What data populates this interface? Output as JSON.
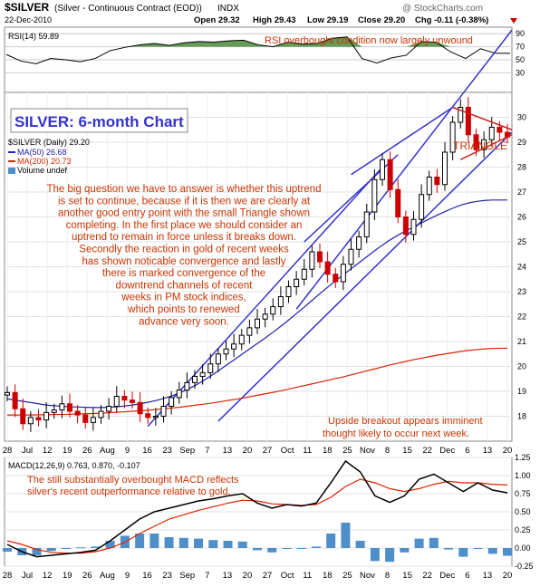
{
  "header": {
    "symbol": "$SILVER",
    "description": "(Silver - Continuous Contract (EOD))",
    "exchange": "INDX",
    "date": "22-Dec-2010",
    "open": "Open 29.32",
    "high": "High 29.43",
    "low": "Low 29.19",
    "close": "Close 29.20",
    "change": "Chg -0.11 (-0.38%)",
    "watermark": "@ StockCharts.com"
  },
  "colors": {
    "price_up": "#000000",
    "price_down": "#cc0000",
    "ma50": "#2222aa",
    "ma200": "#dd2200",
    "channel": "#3333cc",
    "triangle": "#cc2222",
    "rsi_fill": "#4a8a3a",
    "annotation": "#cc3300",
    "title": "#3333cc",
    "volume": "#4f8fc9",
    "macd_line": "#000000",
    "signal_line": "#dd2200"
  },
  "annotations": {
    "rsi_note": "RSI overbought condition now largely unwound",
    "chart_title": "SILVER: 6-month Chart",
    "main_text": [
      "The big question we have to answer is whether this uptrend",
      "is set to continue, because if it is then we are clearly at",
      "another good entry point with the small Triangle shown",
      "completing. In the first place we should consider an",
      "uptrend to remain in force unless it breaks down.",
      "Secondly the reaction in gold of recent weeks",
      "has shown noticable convergence and lastly",
      "there is marked convergence of the",
      "downtrend channels of recent",
      "weeks in PM stock indices,",
      "which points to renewed",
      "advance very soon."
    ],
    "triangle_label": "TRIANGLE",
    "breakout_note": [
      "Upside breakout appears imminent",
      "thought likely to occur next week."
    ],
    "macd_note": [
      "The still substantially overbought MACD reflects",
      "silver's recent outperformance relative to gold."
    ]
  },
  "chart_data": [
    {
      "type": "line",
      "panel": "rsi",
      "label": "RSI(14) 59.89",
      "ylim": [
        0,
        100
      ],
      "y_ticks": [
        30,
        50,
        70,
        90
      ],
      "x": [
        "Jul 28",
        "Jul 30",
        "Aug 4",
        "Aug 9",
        "Aug 13",
        "Aug 18",
        "Aug 23",
        "Aug 27",
        "Sep 1",
        "Sep 7",
        "Sep 10",
        "Sep 15",
        "Sep 20",
        "Sep 24",
        "Sep 29",
        "Oct 4",
        "Oct 8",
        "Oct 13",
        "Oct 18",
        "Oct 22",
        "Oct 27",
        "Nov 1",
        "Nov 5",
        "Nov 9",
        "Nov 12",
        "Nov 16",
        "Nov 19",
        "Nov 24",
        "Nov 30",
        "Dec 3",
        "Dec 6",
        "Dec 9",
        "Dec 14",
        "Dec 17",
        "Dec 22"
      ],
      "values": [
        58,
        48,
        44,
        52,
        50,
        47,
        52,
        64,
        69,
        73,
        75,
        72,
        76,
        78,
        77,
        79,
        80,
        73,
        70,
        77,
        74,
        75,
        83,
        85,
        52,
        45,
        53,
        57,
        78,
        77,
        62,
        52,
        67,
        60,
        59.89
      ]
    },
    {
      "type": "candlestick",
      "panel": "price",
      "title": "SILVER: 6-month Chart",
      "label": "$SILVER (Daily) 29.20",
      "ylim": [
        17,
        31
      ],
      "y_ticks": [
        18,
        19,
        20,
        21,
        22,
        23,
        24,
        25,
        26,
        27,
        28,
        29,
        30
      ],
      "x_ticks": [
        "28",
        "Jul",
        "12",
        "19",
        "26",
        "Aug",
        "9",
        "16",
        "23",
        "Sep",
        "7",
        "13",
        "20",
        "27",
        "Oct",
        "11",
        "18",
        "25",
        "Nov",
        "8",
        "15",
        "22",
        "Dec",
        "6",
        "13",
        "20"
      ],
      "close": [
        18.95,
        18.3,
        17.7,
        17.95,
        17.85,
        18.15,
        18.25,
        18.5,
        18.2,
        18.05,
        17.75,
        17.95,
        18.2,
        18.4,
        18.8,
        18.65,
        18.55,
        18.1,
        17.95,
        18.0,
        18.4,
        18.75,
        19.05,
        19.35,
        19.6,
        19.75,
        20.1,
        20.5,
        20.7,
        20.9,
        21.25,
        21.55,
        21.9,
        22.1,
        22.4,
        22.8,
        23.2,
        23.5,
        23.9,
        24.6,
        24.2,
        23.7,
        23.4,
        24.1,
        24.7,
        25.2,
        26.2,
        27.5,
        28.3,
        27.1,
        26.0,
        25.3,
        25.9,
        26.9,
        27.6,
        27.3,
        28.6,
        29.8,
        30.4,
        29.3,
        28.7,
        29.1,
        29.6,
        29.4,
        29.2
      ],
      "series": [
        {
          "name": "MA(50) 26.68",
          "values": [
            18.7,
            18.65,
            18.6,
            18.55,
            18.5,
            18.45,
            18.42,
            18.4,
            18.38,
            18.37,
            18.36,
            18.35,
            18.35,
            18.36,
            18.38,
            18.41,
            18.45,
            18.5,
            18.56,
            18.63,
            18.71,
            18.81,
            18.93,
            19.07,
            19.23,
            19.41,
            19.61,
            19.82,
            20.04,
            20.26,
            20.48,
            20.7,
            20.92,
            21.14,
            21.37,
            21.61,
            21.86,
            22.12,
            22.38,
            22.65,
            22.92,
            23.18,
            23.43,
            23.68,
            23.92,
            24.16,
            24.4,
            24.64,
            24.87,
            25.08,
            25.27,
            25.44,
            25.6,
            25.76,
            25.92,
            26.07,
            26.21,
            26.35,
            26.47,
            26.56,
            26.62,
            26.66,
            26.68,
            26.68,
            26.68
          ]
        },
        {
          "name": "MA(200) 20.73",
          "values": [
            18.05,
            18.05,
            18.05,
            18.05,
            18.06,
            18.06,
            18.07,
            18.07,
            18.08,
            18.09,
            18.1,
            18.11,
            18.12,
            18.14,
            18.16,
            18.18,
            18.2,
            18.22,
            18.24,
            18.27,
            18.3,
            18.33,
            18.36,
            18.4,
            18.44,
            18.48,
            18.52,
            18.57,
            18.62,
            18.67,
            18.72,
            18.78,
            18.84,
            18.9,
            18.96,
            19.02,
            19.09,
            19.16,
            19.23,
            19.3,
            19.37,
            19.44,
            19.51,
            19.58,
            19.66,
            19.74,
            19.82,
            19.9,
            19.98,
            20.06,
            20.13,
            20.2,
            20.27,
            20.33,
            20.39,
            20.45,
            20.5,
            20.55,
            20.6,
            20.64,
            20.67,
            20.7,
            20.72,
            20.73,
            20.73
          ]
        }
      ],
      "legend": [
        "$SILVER (Daily) 29.20",
        "MA(50) 26.68",
        "MA(200) 20.73",
        "Volume undef"
      ]
    },
    {
      "type": "line",
      "panel": "macd",
      "label": "MACD(12,26,9) 0.763, 0.870, -0.107",
      "ylim": [
        -0.25,
        1.25
      ],
      "y_ticks": [
        -0.25,
        0.0,
        0.25,
        0.5,
        0.75,
        1.0,
        1.25
      ],
      "x": [
        "Jul 28",
        "Jul 30",
        "Aug 4",
        "Aug 9",
        "Aug 13",
        "Aug 18",
        "Aug 23",
        "Aug 27",
        "Sep 1",
        "Sep 7",
        "Sep 10",
        "Sep 15",
        "Sep 20",
        "Sep 24",
        "Sep 29",
        "Oct 4",
        "Oct 8",
        "Oct 13",
        "Oct 18",
        "Oct 22",
        "Oct 27",
        "Nov 1",
        "Nov 5",
        "Nov 9",
        "Nov 12",
        "Nov 16",
        "Nov 19",
        "Nov 24",
        "Nov 30",
        "Dec 3",
        "Dec 6",
        "Dec 9",
        "Dec 14",
        "Dec 17",
        "Dec 22"
      ],
      "series": [
        {
          "name": "MACD",
          "values": [
            0.05,
            -0.05,
            -0.12,
            -0.1,
            -0.08,
            -0.06,
            -0.03,
            0.1,
            0.25,
            0.4,
            0.5,
            0.55,
            0.6,
            0.65,
            0.68,
            0.72,
            0.75,
            0.62,
            0.55,
            0.6,
            0.58,
            0.62,
            0.9,
            1.2,
            1.05,
            0.72,
            0.63,
            0.72,
            0.95,
            1.02,
            0.9,
            0.78,
            0.9,
            0.8,
            0.763
          ]
        },
        {
          "name": "Signal",
          "values": [
            0.1,
            0.05,
            -0.02,
            -0.06,
            -0.07,
            -0.07,
            -0.05,
            0.0,
            0.08,
            0.2,
            0.3,
            0.4,
            0.46,
            0.52,
            0.57,
            0.62,
            0.66,
            0.65,
            0.61,
            0.6,
            0.59,
            0.6,
            0.7,
            0.85,
            0.95,
            0.9,
            0.82,
            0.78,
            0.82,
            0.88,
            0.92,
            0.9,
            0.9,
            0.88,
            0.87
          ]
        },
        {
          "name": "Histogram",
          "values": [
            -0.05,
            -0.1,
            -0.1,
            -0.04,
            -0.01,
            0.01,
            0.02,
            0.1,
            0.17,
            0.2,
            0.2,
            0.15,
            0.14,
            0.13,
            0.11,
            0.1,
            0.09,
            -0.03,
            -0.06,
            0.0,
            -0.01,
            0.02,
            0.2,
            0.35,
            0.1,
            -0.18,
            -0.19,
            -0.06,
            0.13,
            0.14,
            -0.02,
            -0.12,
            0.0,
            -0.08,
            -0.107
          ]
        }
      ]
    }
  ],
  "macd_x_ticks": [
    "28",
    "Jul",
    "12",
    "19",
    "26",
    "Aug",
    "9",
    "16",
    "23",
    "Sep",
    "7",
    "13",
    "20",
    "27",
    "Oct",
    "11",
    "18",
    "25",
    "Nov",
    "8",
    "15",
    "22",
    "Dec",
    "6",
    "13",
    "20"
  ]
}
